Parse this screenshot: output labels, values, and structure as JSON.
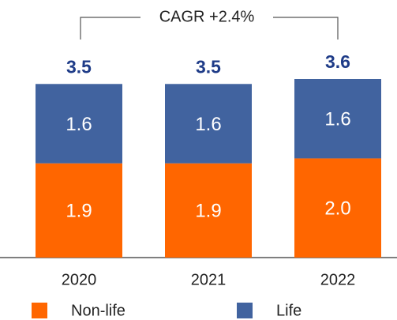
{
  "chart_data": {
    "type": "bar",
    "stacked": true,
    "annotation": "CAGR +2.4%",
    "categories": [
      "2020",
      "2021",
      "2022"
    ],
    "series": [
      {
        "name": "Non-life",
        "color": "#ff6600",
        "values": [
          1.9,
          1.9,
          2.0
        ],
        "value_labels": [
          "1.9",
          "1.9",
          "2.0"
        ]
      },
      {
        "name": "Life",
        "color": "#41639f",
        "values": [
          1.6,
          1.6,
          1.6
        ]
      }
    ],
    "totals": [
      3.5,
      3.5,
      3.6
    ]
  }
}
